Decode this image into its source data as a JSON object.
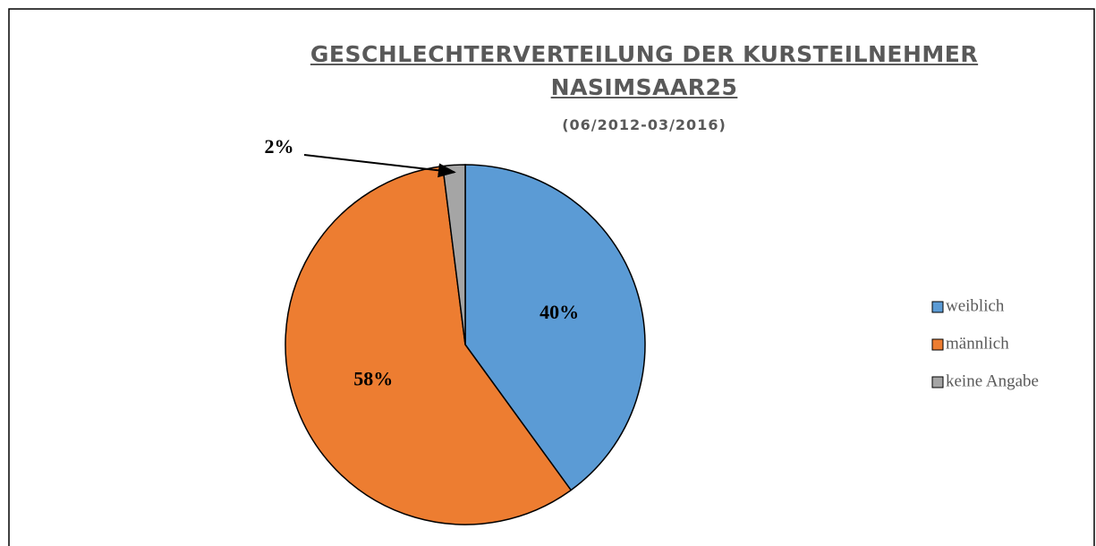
{
  "chart_data": {
    "type": "pie",
    "title": "GESCHLECHTERVERTEILUNG DER KURSTEILNEHMER NASIMSAAR25",
    "subtitle": "(06/2012-03/2016)",
    "categories": [
      "weiblich",
      "männlich",
      "keine Angabe"
    ],
    "values": [
      40,
      58,
      2
    ],
    "value_labels": [
      "40%",
      "58%",
      "2%"
    ],
    "colors": [
      "#5b9bd5",
      "#ed7d31",
      "#a5a5a5"
    ],
    "legend": "right"
  }
}
